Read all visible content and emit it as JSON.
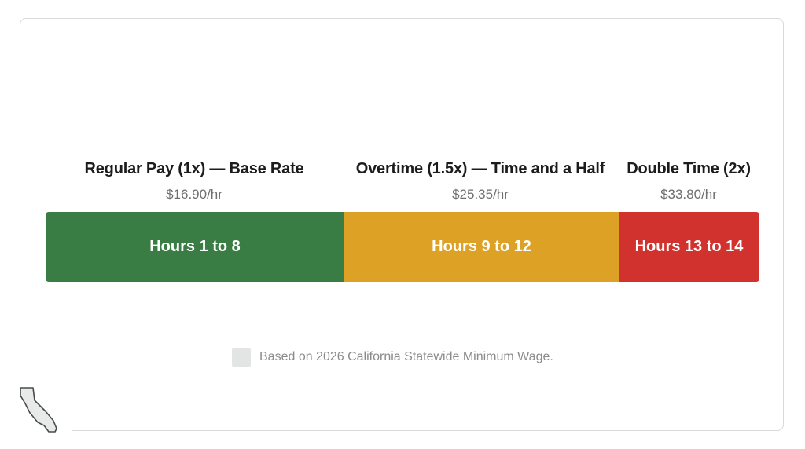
{
  "tiers": [
    {
      "title": "Regular Pay (1x) — Base Rate",
      "rate": "$16.90/hr",
      "hours_label": "Hours 1 to 8",
      "hours_span": 8,
      "color": "#3a7d44"
    },
    {
      "title": "Overtime (1.5x) — Time and a Half",
      "rate": "$25.35/hr",
      "hours_label": "Hours 9 to 12",
      "hours_span": 4,
      "color": "#dda225"
    },
    {
      "title": "Double Time (2x)",
      "rate": "$33.80/hr",
      "hours_label": "Hours 13 to 14",
      "hours_span": 2,
      "color": "#d2322d"
    }
  ],
  "footnote": {
    "text": "Based on 2026 California Statewide Minimum Wage."
  },
  "icons": {
    "state": "california-map-icon",
    "placeholder": "image-placeholder-icon"
  }
}
